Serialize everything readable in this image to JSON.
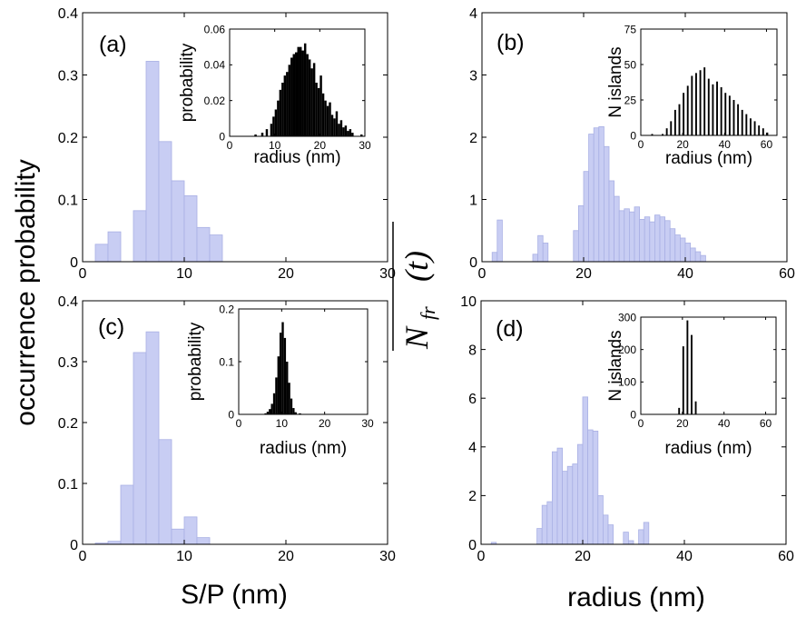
{
  "figure": {
    "ylabel_left": "occurrence probability",
    "ylabel_middle_main": "N",
    "ylabel_middle_sub": "fr",
    "ylabel_middle_arg": "(t)",
    "xlabel_left": "S/P (nm)",
    "xlabel_right": "radius (nm)"
  },
  "colors": {
    "main_bar_fill": "#c8cdf3",
    "main_bar_stroke": "#a9b0e4",
    "inset_bar": "#000000"
  },
  "chart_data": [
    {
      "id": "a",
      "type": "bar",
      "panel_label": "(a)",
      "xlabel": "S/P (nm)",
      "ylabel": "occurrence probability",
      "xlim": [
        0,
        30
      ],
      "ylim": [
        0,
        0.4
      ],
      "xticks": [
        0,
        10,
        20,
        30
      ],
      "xtick_labels": [
        "0",
        "10",
        "20",
        "30"
      ],
      "yticks": [
        0,
        0.1,
        0.2,
        0.3,
        0.4
      ],
      "ytick_labels": [
        "0",
        "0.1",
        "0.2",
        "0.3",
        "0.4"
      ],
      "bin_width": 1.25,
      "x": [
        1.25,
        2.5,
        5.0,
        6.25,
        7.5,
        8.75,
        10.0,
        11.25,
        12.5
      ],
      "values": [
        0.028,
        0.048,
        0.082,
        0.322,
        0.193,
        0.13,
        0.106,
        0.055,
        0.043
      ],
      "inset": {
        "type": "bar",
        "xlabel": "radius (nm)",
        "ylabel": "probability",
        "xlim": [
          0,
          30
        ],
        "ylim": [
          0,
          0.06
        ],
        "xticks": [
          0,
          10,
          20,
          30
        ],
        "xtick_labels": [
          "0",
          "10",
          "20",
          "30"
        ],
        "yticks": [
          0,
          0.02,
          0.04,
          0.06
        ],
        "ytick_labels": [
          "0",
          "0.02",
          "0.04",
          "0.06"
        ],
        "bin_width": 0.5,
        "x": [
          5.5,
          7,
          8,
          9,
          9.5,
          10,
          10.5,
          11,
          11.5,
          12,
          12.5,
          13,
          13.5,
          14,
          14.5,
          15,
          15.5,
          16,
          16.5,
          17,
          17.5,
          18,
          18.5,
          19,
          19.5,
          20,
          20.5,
          21,
          21.5,
          22,
          22.5,
          23,
          23.5,
          24,
          24.5,
          25,
          25.5,
          26,
          26.5,
          27,
          29
        ],
        "values": [
          0.001,
          0.002,
          0.004,
          0.007,
          0.011,
          0.015,
          0.02,
          0.026,
          0.03,
          0.034,
          0.036,
          0.04,
          0.044,
          0.046,
          0.047,
          0.05,
          0.05,
          0.048,
          0.052,
          0.046,
          0.043,
          0.038,
          0.041,
          0.03,
          0.027,
          0.034,
          0.024,
          0.02,
          0.017,
          0.019,
          0.012,
          0.01,
          0.014,
          0.007,
          0.009,
          0.005,
          0.006,
          0.003,
          0.004,
          0.002,
          0.001
        ]
      }
    },
    {
      "id": "b",
      "type": "bar",
      "panel_label": "(b)",
      "xlabel": "radius (nm)",
      "ylabel": "N_fr(t)",
      "xlim": [
        0,
        60
      ],
      "ylim": [
        0,
        4
      ],
      "xticks": [
        0,
        20,
        40,
        60
      ],
      "xtick_labels": [
        "0",
        "20",
        "40",
        "60"
      ],
      "yticks": [
        0,
        1,
        2,
        3,
        4
      ],
      "ytick_labels": [
        "0",
        "1",
        "2",
        "3",
        "4"
      ],
      "bin_width": 1,
      "x": [
        2,
        3,
        10,
        11,
        12,
        18,
        19,
        20,
        21,
        22,
        23,
        24,
        25,
        26,
        27,
        28,
        29,
        30,
        31,
        32,
        33,
        34,
        35,
        36,
        37,
        38,
        39,
        40,
        41,
        42,
        43
      ],
      "values": [
        0.15,
        0.67,
        0.12,
        0.42,
        0.3,
        0.5,
        0.9,
        1.45,
        2.05,
        2.15,
        2.17,
        1.85,
        1.3,
        1.05,
        0.82,
        0.85,
        0.8,
        0.88,
        0.68,
        0.72,
        0.64,
        0.75,
        0.72,
        0.66,
        0.53,
        0.43,
        0.38,
        0.3,
        0.22,
        0.16,
        0.1
      ],
      "inset": {
        "type": "bar",
        "xlabel": "radius (nm)",
        "ylabel": "N islands",
        "xlim": [
          0,
          65
        ],
        "ylim": [
          0,
          75
        ],
        "xticks": [
          0,
          20,
          40,
          60
        ],
        "xtick_labels": [
          "0",
          "20",
          "40",
          "60"
        ],
        "yticks": [
          0,
          25,
          50,
          75
        ],
        "ytick_labels": [
          "0",
          "25",
          "50",
          "75"
        ],
        "bin_width": 1.5,
        "x": [
          5,
          10,
          12,
          14,
          16,
          18,
          20,
          22,
          24,
          26,
          28,
          30,
          32,
          34,
          36,
          38,
          40,
          42,
          44,
          46,
          48,
          50,
          52,
          54,
          56,
          58,
          60
        ],
        "values": [
          1,
          1,
          5,
          10,
          18,
          22,
          30,
          35,
          42,
          44,
          46,
          48,
          40,
          36,
          38,
          34,
          30,
          28,
          25,
          22,
          18,
          15,
          12,
          10,
          7,
          5,
          2
        ]
      }
    },
    {
      "id": "c",
      "type": "bar",
      "panel_label": "(c)",
      "xlabel": "S/P (nm)",
      "ylabel": "occurrence probability",
      "xlim": [
        0,
        30
      ],
      "ylim": [
        0,
        0.4
      ],
      "xticks": [
        0,
        10,
        20,
        30
      ],
      "xtick_labels": [
        "0",
        "10",
        "20",
        "30"
      ],
      "yticks": [
        0,
        0.1,
        0.2,
        0.3,
        0.4
      ],
      "ytick_labels": [
        "0",
        "0.1",
        "0.2",
        "0.3",
        "0.4"
      ],
      "bin_width": 1.25,
      "x": [
        1.25,
        2.5,
        3.75,
        5.0,
        6.25,
        7.5,
        8.75,
        10.0,
        11.25
      ],
      "values": [
        0.002,
        0.005,
        0.097,
        0.315,
        0.349,
        0.172,
        0.025,
        0.045,
        0.011
      ],
      "inset": {
        "type": "bar",
        "xlabel": "radius (nm)",
        "ylabel": "probability",
        "xlim": [
          0,
          30
        ],
        "ylim": [
          0,
          0.2
        ],
        "xticks": [
          0,
          10,
          20,
          30
        ],
        "xtick_labels": [
          "0",
          "10",
          "20",
          "30"
        ],
        "yticks": [
          0,
          0.1,
          0.2
        ],
        "ytick_labels": [
          "0",
          "0.1",
          "0.2"
        ],
        "bin_width": 0.5,
        "x": [
          6,
          6.5,
          7,
          7.5,
          8,
          8.5,
          9,
          9.5,
          10,
          10.5,
          11,
          11.5,
          12,
          12.5,
          13,
          14
        ],
        "values": [
          0.002,
          0.005,
          0.01,
          0.02,
          0.04,
          0.07,
          0.11,
          0.155,
          0.175,
          0.145,
          0.1,
          0.06,
          0.03,
          0.012,
          0.004,
          0.002
        ]
      }
    },
    {
      "id": "d",
      "type": "bar",
      "panel_label": "(d)",
      "xlabel": "radius (nm)",
      "ylabel": "N_fr(t)",
      "xlim": [
        0,
        60
      ],
      "ylim": [
        0,
        10
      ],
      "xticks": [
        0,
        20,
        40,
        60
      ],
      "xtick_labels": [
        "0",
        "20",
        "40",
        "60"
      ],
      "yticks": [
        0,
        2,
        4,
        6,
        8,
        10
      ],
      "ytick_labels": [
        "0",
        "2",
        "4",
        "6",
        "8",
        "10"
      ],
      "bin_width": 1,
      "x": [
        2,
        11,
        12,
        13,
        14,
        15,
        16,
        17,
        18,
        19,
        20,
        21,
        22,
        23,
        24,
        25,
        28,
        29,
        31,
        32
      ],
      "values": [
        0.08,
        0.65,
        1.6,
        1.75,
        3.8,
        3.95,
        3.0,
        3.2,
        3.3,
        4.1,
        6.05,
        4.7,
        4.65,
        2.0,
        1.2,
        0.8,
        0.5,
        0.15,
        0.6,
        0.9
      ],
      "inset": {
        "type": "bar",
        "xlabel": "radius (nm)",
        "ylabel": "N islands",
        "xlim": [
          0,
          65
        ],
        "ylim": [
          0,
          300
        ],
        "xticks": [
          0,
          20,
          40,
          60
        ],
        "xtick_labels": [
          "0",
          "20",
          "40",
          "60"
        ],
        "yticks": [
          0,
          100,
          200,
          300
        ],
        "ytick_labels": [
          "0",
          "100",
          "200",
          "300"
        ],
        "bin_width": 1.5,
        "x": [
          18,
          20,
          22,
          24,
          26
        ],
        "values": [
          20,
          210,
          290,
          245,
          40
        ]
      }
    }
  ]
}
